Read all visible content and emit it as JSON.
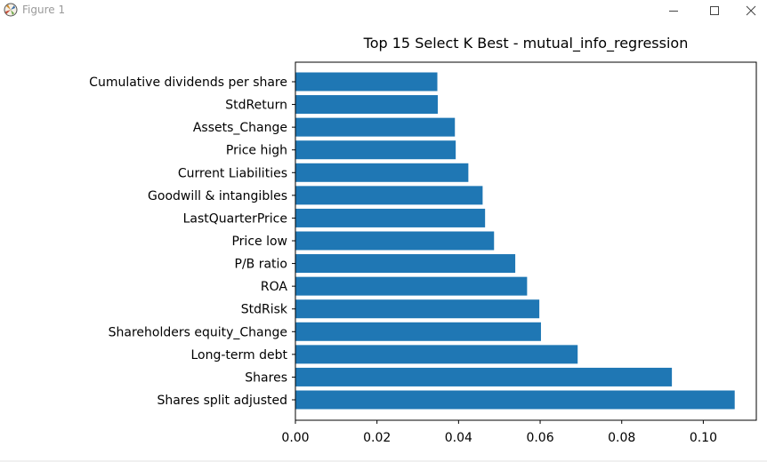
{
  "window": {
    "title": "Figure 1",
    "icons": {
      "app": "matplotlib-figure-icon",
      "minimize": "minimize-icon",
      "maximize": "maximize-icon",
      "close": "close-icon"
    }
  },
  "chart_data": {
    "type": "bar",
    "orientation": "horizontal",
    "title": "Top 15 Select K Best - mutual_info_regression",
    "xlabel": "",
    "ylabel": "",
    "categories": [
      "Shares split adjusted",
      "Shares",
      "Long-term debt",
      "Shareholders equity_Change",
      "StdRisk",
      "ROA",
      "P/B ratio",
      "Price low",
      "LastQuarterPrice",
      "Goodwill & intangibles",
      "Current Liabilities",
      "Price high",
      "Assets_Change",
      "StdReturn",
      "Cumulative dividends per share"
    ],
    "values": [
      0.1077,
      0.0923,
      0.0692,
      0.0602,
      0.0598,
      0.0568,
      0.0539,
      0.0487,
      0.0465,
      0.0459,
      0.0424,
      0.0393,
      0.0391,
      0.0349,
      0.0348
    ],
    "xlim": [
      0,
      0.113
    ],
    "xticks": [
      0.0,
      0.02,
      0.04,
      0.06,
      0.08,
      0.1
    ],
    "xtick_labels": [
      "0.00",
      "0.02",
      "0.04",
      "0.06",
      "0.08",
      "0.10"
    ],
    "grid": false,
    "legend": "none",
    "bar_color": "#1f77b4"
  }
}
